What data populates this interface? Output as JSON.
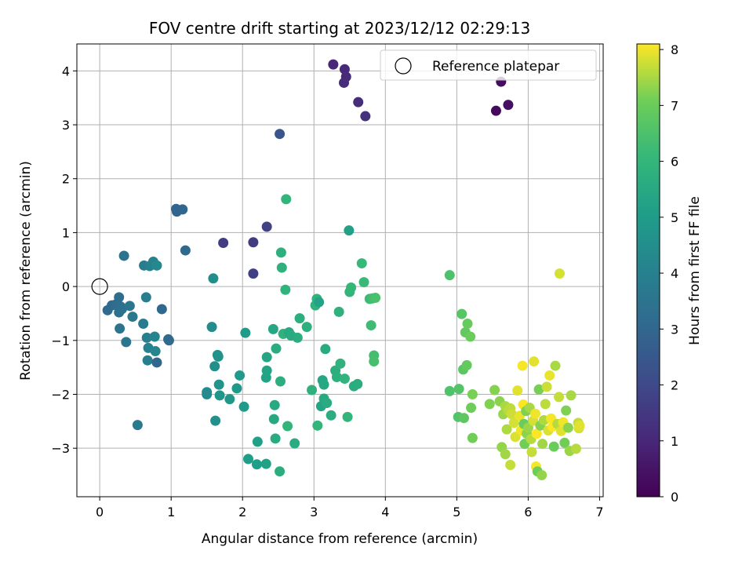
{
  "chart_data": {
    "type": "scatter",
    "title": "FOV centre drift starting at 2023/12/12 02:29:13",
    "xlabel": "Angular distance from reference (arcmin)",
    "ylabel": "Rotation from reference (arcmin)",
    "xlim": [
      -0.32,
      7.05
    ],
    "ylim": [
      -3.9,
      4.5
    ],
    "xticks": [
      0,
      1,
      2,
      3,
      4,
      5,
      6,
      7
    ],
    "yticks": [
      -3,
      -2,
      -1,
      0,
      1,
      2,
      3,
      4
    ],
    "grid": true,
    "legend": {
      "placement": "top-right",
      "entries": [
        "Reference platepar"
      ]
    },
    "reference_point": {
      "x": 0,
      "y": 0
    },
    "colorbar": {
      "label": "Hours from first FF file",
      "range": [
        0,
        8.1
      ],
      "ticks": [
        0,
        1,
        2,
        3,
        4,
        5,
        6,
        7,
        8
      ],
      "colormap": "viridis"
    },
    "points": [
      [
        5.55,
        3.26,
        0.2
      ],
      [
        5.62,
        3.8,
        0.3
      ],
      [
        5.72,
        3.37,
        0.4
      ],
      [
        3.27,
        4.12,
        1.0
      ],
      [
        3.43,
        4.03,
        1.05
      ],
      [
        3.45,
        3.89,
        1.1
      ],
      [
        3.42,
        3.78,
        1.15
      ],
      [
        3.62,
        3.42,
        1.2
      ],
      [
        3.72,
        3.16,
        1.3
      ],
      [
        1.73,
        0.81,
        1.6
      ],
      [
        2.15,
        0.82,
        1.65
      ],
      [
        2.15,
        0.24,
        1.7
      ],
      [
        2.34,
        1.11,
        1.75
      ],
      [
        2.52,
        2.83,
        2.4
      ],
      [
        0.11,
        -0.44,
        3.1
      ],
      [
        0.17,
        -0.35,
        3.15
      ],
      [
        0.23,
        -0.33,
        3.2
      ],
      [
        0.27,
        -0.2,
        3.25
      ],
      [
        0.27,
        -0.48,
        3.3
      ],
      [
        0.29,
        -0.37,
        3.35
      ],
      [
        0.31,
        -0.42,
        3.4
      ],
      [
        0.28,
        -0.78,
        3.45
      ],
      [
        0.34,
        0.57,
        3.5
      ],
      [
        0.37,
        -1.03,
        3.55
      ],
      [
        0.42,
        -0.36,
        3.6
      ],
      [
        0.46,
        -0.56,
        3.65
      ],
      [
        0.53,
        -2.57,
        3.7
      ],
      [
        0.61,
        -0.69,
        3.75
      ],
      [
        0.62,
        0.39,
        3.8
      ],
      [
        0.65,
        -0.2,
        3.85
      ],
      [
        0.66,
        -0.95,
        3.9
      ],
      [
        0.67,
        -1.37,
        3.95
      ],
      [
        0.68,
        -1.14,
        4.0
      ],
      [
        0.7,
        0.38,
        4.05
      ],
      [
        0.75,
        0.46,
        4.1
      ],
      [
        0.77,
        -0.93,
        4.15
      ],
      [
        0.78,
        -1.2,
        4.2
      ],
      [
        0.8,
        0.39,
        4.25
      ],
      [
        0.8,
        -1.41,
        3.0
      ],
      [
        0.87,
        -0.42,
        3.05
      ],
      [
        0.96,
        -0.98,
        3.1
      ],
      [
        0.97,
        -1.0,
        3.15
      ],
      [
        1.07,
        1.44,
        2.9
      ],
      [
        1.08,
        1.39,
        2.95
      ],
      [
        1.16,
        1.43,
        3.0
      ],
      [
        1.2,
        0.67,
        3.05
      ],
      [
        1.5,
        -2.0,
        4.3
      ],
      [
        1.5,
        -1.96,
        4.35
      ],
      [
        1.57,
        -0.75,
        4.4
      ],
      [
        1.59,
        0.15,
        4.45
      ],
      [
        1.61,
        -1.48,
        4.5
      ],
      [
        1.62,
        -2.49,
        4.55
      ],
      [
        1.65,
        -1.27,
        4.6
      ],
      [
        1.66,
        -1.3,
        4.65
      ],
      [
        1.67,
        -1.82,
        4.7
      ],
      [
        1.68,
        -2.02,
        4.75
      ],
      [
        1.82,
        -2.09,
        4.8
      ],
      [
        1.92,
        -1.89,
        4.85
      ],
      [
        1.96,
        -1.65,
        4.9
      ],
      [
        2.02,
        -2.23,
        4.95
      ],
      [
        2.04,
        -0.86,
        5.0
      ],
      [
        2.08,
        -3.2,
        5.05
      ],
      [
        2.2,
        -3.3,
        5.1
      ],
      [
        2.21,
        -2.88,
        5.15
      ],
      [
        2.33,
        -3.29,
        5.2
      ],
      [
        2.33,
        -1.69,
        5.25
      ],
      [
        2.34,
        -1.56,
        5.3
      ],
      [
        2.34,
        -1.31,
        5.35
      ],
      [
        2.43,
        -0.79,
        5.4
      ],
      [
        2.44,
        -2.46,
        5.45
      ],
      [
        2.45,
        -2.2,
        5.5
      ],
      [
        2.46,
        -2.82,
        5.55
      ],
      [
        2.47,
        -1.15,
        5.6
      ],
      [
        2.52,
        -3.43,
        5.65
      ],
      [
        2.53,
        -1.76,
        5.7
      ],
      [
        2.54,
        0.63,
        5.75
      ],
      [
        2.55,
        0.35,
        5.8
      ],
      [
        2.57,
        -0.88,
        5.85
      ],
      [
        2.6,
        -0.06,
        5.9
      ],
      [
        2.61,
        1.62,
        5.95
      ],
      [
        2.63,
        -2.59,
        6.0
      ],
      [
        2.65,
        -0.85,
        5.5
      ],
      [
        2.68,
        -0.91,
        5.55
      ],
      [
        2.73,
        -2.91,
        5.6
      ],
      [
        2.77,
        -0.95,
        5.65
      ],
      [
        2.8,
        -0.59,
        5.7
      ],
      [
        2.9,
        -0.75,
        5.75
      ],
      [
        2.97,
        -1.92,
        5.8
      ],
      [
        3.02,
        -0.35,
        5.85
      ],
      [
        3.04,
        -0.23,
        5.9
      ],
      [
        3.05,
        -2.58,
        5.95
      ],
      [
        3.07,
        -0.29,
        5.3
      ],
      [
        3.1,
        -2.22,
        5.35
      ],
      [
        3.12,
        -1.74,
        5.4
      ],
      [
        3.14,
        -1.82,
        5.45
      ],
      [
        3.14,
        -2.08,
        5.5
      ],
      [
        3.16,
        -1.16,
        5.55
      ],
      [
        3.18,
        -2.16,
        5.6
      ],
      [
        3.24,
        -2.39,
        5.65
      ],
      [
        3.3,
        -1.56,
        5.7
      ],
      [
        3.32,
        -1.68,
        5.75
      ],
      [
        3.35,
        -0.47,
        5.8
      ],
      [
        3.37,
        -1.43,
        5.85
      ],
      [
        3.43,
        -1.71,
        5.9
      ],
      [
        3.47,
        -2.42,
        5.95
      ],
      [
        3.49,
        1.04,
        5.2
      ],
      [
        3.5,
        -0.1,
        6.0
      ],
      [
        3.52,
        -0.02,
        6.05
      ],
      [
        3.56,
        -1.85,
        5.6
      ],
      [
        3.61,
        -1.81,
        5.65
      ],
      [
        3.67,
        0.43,
        6.1
      ],
      [
        3.7,
        0.08,
        6.15
      ],
      [
        3.78,
        -0.23,
        6.2
      ],
      [
        3.8,
        -0.72,
        6.25
      ],
      [
        3.82,
        -0.22,
        6.3
      ],
      [
        3.84,
        -1.28,
        6.35
      ],
      [
        3.84,
        -1.39,
        6.4
      ],
      [
        3.86,
        -0.21,
        6.45
      ],
      [
        4.9,
        0.21,
        6.5
      ],
      [
        4.9,
        -1.94,
        6.55
      ],
      [
        5.02,
        -2.42,
        6.6
      ],
      [
        5.03,
        -1.9,
        6.65
      ],
      [
        5.07,
        -0.51,
        6.7
      ],
      [
        5.09,
        -1.54,
        6.75
      ],
      [
        5.1,
        -2.44,
        6.8
      ],
      [
        5.12,
        -0.85,
        6.85
      ],
      [
        5.14,
        -1.46,
        6.9
      ],
      [
        5.15,
        -0.69,
        6.95
      ],
      [
        5.19,
        -0.93,
        7.0
      ],
      [
        5.2,
        -2.25,
        7.05
      ],
      [
        5.22,
        -2.81,
        7.1
      ],
      [
        5.22,
        -2.0,
        7.15
      ],
      [
        5.46,
        -2.18,
        7.2
      ],
      [
        5.53,
        -1.92,
        7.25
      ],
      [
        5.6,
        -2.13,
        7.3
      ],
      [
        5.63,
        -2.98,
        7.35
      ],
      [
        5.65,
        -2.37,
        7.4
      ],
      [
        5.68,
        -3.11,
        7.45
      ],
      [
        5.68,
        -2.22,
        7.5
      ],
      [
        5.7,
        -2.65,
        7.55
      ],
      [
        5.72,
        -2.3,
        7.6
      ],
      [
        5.75,
        -2.26,
        7.65
      ],
      [
        5.75,
        -3.31,
        7.7
      ],
      [
        5.77,
        -2.37,
        7.75
      ],
      [
        5.8,
        -2.53,
        7.8
      ],
      [
        5.82,
        -2.79,
        7.85
      ],
      [
        5.85,
        -1.93,
        7.9
      ],
      [
        5.88,
        -2.4,
        7.95
      ],
      [
        5.9,
        -2.67,
        8.0
      ],
      [
        5.92,
        -1.47,
        8.05
      ],
      [
        5.93,
        -2.19,
        8.1
      ],
      [
        5.94,
        -2.55,
        7.0
      ],
      [
        5.95,
        -2.92,
        7.1
      ],
      [
        5.97,
        -2.31,
        7.2
      ],
      [
        5.98,
        -2.73,
        7.3
      ],
      [
        6.0,
        -2.62,
        7.4
      ],
      [
        6.02,
        -2.25,
        7.5
      ],
      [
        6.04,
        -2.83,
        7.6
      ],
      [
        6.05,
        -3.07,
        7.7
      ],
      [
        6.07,
        -2.49,
        7.8
      ],
      [
        6.08,
        -1.39,
        7.9
      ],
      [
        6.1,
        -2.36,
        8.0
      ],
      [
        6.11,
        -3.34,
        8.05
      ],
      [
        6.12,
        -2.73,
        8.1
      ],
      [
        6.13,
        -3.43,
        7.05
      ],
      [
        6.15,
        -1.91,
        7.15
      ],
      [
        6.17,
        -2.58,
        7.25
      ],
      [
        6.19,
        -3.5,
        7.35
      ],
      [
        6.2,
        -2.92,
        7.45
      ],
      [
        6.22,
        -2.48,
        7.55
      ],
      [
        6.24,
        -2.18,
        7.65
      ],
      [
        6.26,
        -1.86,
        7.75
      ],
      [
        6.28,
        -2.67,
        7.85
      ],
      [
        6.3,
        -1.65,
        7.95
      ],
      [
        6.32,
        -2.45,
        8.05
      ],
      [
        6.34,
        -2.6,
        8.1
      ],
      [
        6.36,
        -2.97,
        7.0
      ],
      [
        6.38,
        -1.47,
        7.5
      ],
      [
        6.41,
        -2.55,
        7.6
      ],
      [
        6.43,
        -2.05,
        7.7
      ],
      [
        6.44,
        0.24,
        7.8
      ],
      [
        6.46,
        -2.68,
        7.9
      ],
      [
        6.49,
        -2.52,
        8.0
      ],
      [
        6.51,
        -2.9,
        7.1
      ],
      [
        6.53,
        -2.3,
        7.2
      ],
      [
        6.56,
        -2.62,
        7.3
      ],
      [
        6.58,
        -3.05,
        7.4
      ],
      [
        6.6,
        -2.02,
        7.5
      ],
      [
        6.67,
        -3.01,
        7.6
      ],
      [
        6.7,
        -2.53,
        7.7
      ],
      [
        6.71,
        -2.63,
        7.8
      ],
      [
        6.72,
        -2.58,
        7.9
      ]
    ]
  }
}
